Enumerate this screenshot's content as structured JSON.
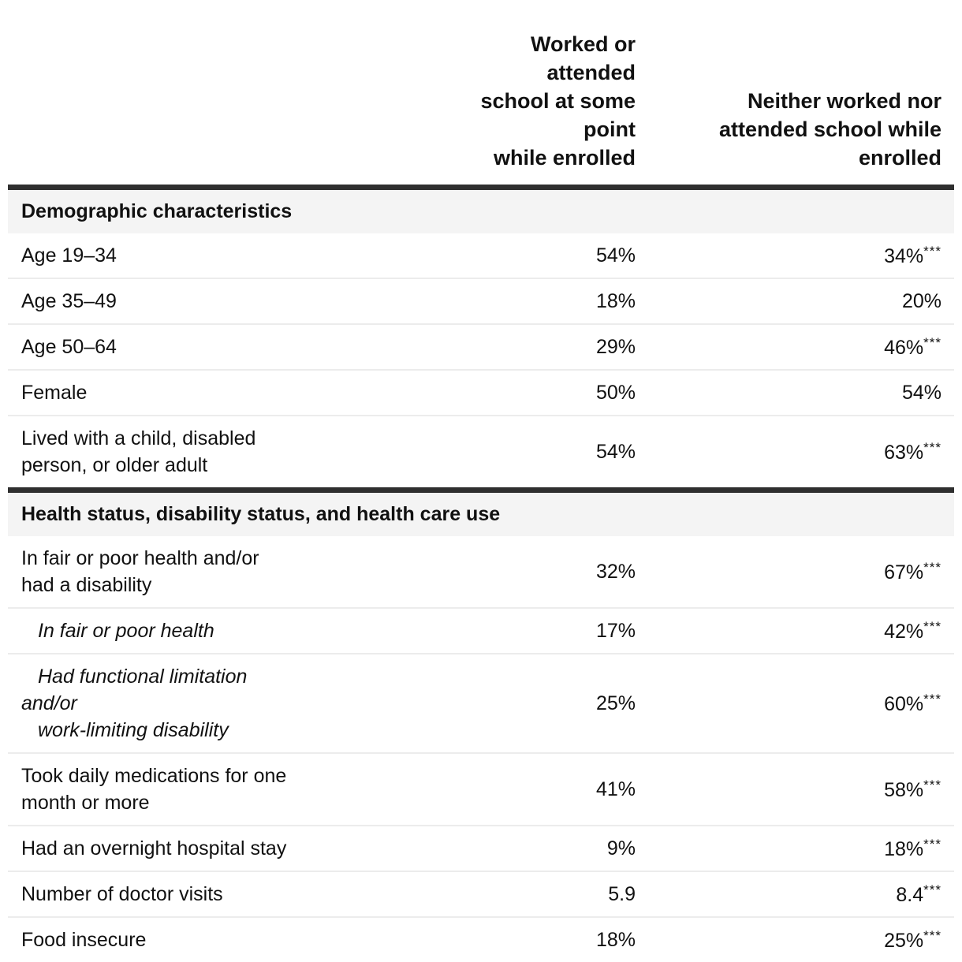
{
  "table": {
    "kind": "comparison-table",
    "columns": [
      {
        "id": "worked",
        "label": "Worked or attended school at some point while enrolled",
        "label_lines": [
          "Worked or attended",
          "school at some point",
          "while enrolled"
        ]
      },
      {
        "id": "neither",
        "label": "Neither worked nor attended school while enrolled",
        "label_lines": [
          "Neither worked nor",
          "attended school while",
          "enrolled"
        ]
      }
    ],
    "sections": [
      {
        "title": "Demographic characteristics",
        "rows": [
          {
            "label": "Age 19–34",
            "label_lines": [
              "Age 19–34"
            ],
            "italic": false,
            "indent_lines": [
              false
            ],
            "worked": "54%",
            "neither": "34%",
            "neither_sig": "***"
          },
          {
            "label": "Age 35–49",
            "label_lines": [
              "Age 35–49"
            ],
            "italic": false,
            "indent_lines": [
              false
            ],
            "worked": "18%",
            "neither": "20%",
            "neither_sig": ""
          },
          {
            "label": "Age 50–64",
            "label_lines": [
              "Age 50–64"
            ],
            "italic": false,
            "indent_lines": [
              false
            ],
            "worked": "29%",
            "neither": "46%",
            "neither_sig": "***"
          },
          {
            "label": "Female",
            "label_lines": [
              "Female"
            ],
            "italic": false,
            "indent_lines": [
              false
            ],
            "worked": "50%",
            "neither": "54%",
            "neither_sig": ""
          },
          {
            "label": "Lived with a child, disabled person, or older adult",
            "label_lines": [
              "Lived with a child, disabled",
              "person, or older adult"
            ],
            "italic": false,
            "indent_lines": [
              false,
              false
            ],
            "worked": "54%",
            "neither": "63%",
            "neither_sig": "***"
          }
        ]
      },
      {
        "title": "Health status, disability status, and health care use",
        "rows": [
          {
            "label": "In fair or poor health and/or had a disability",
            "label_lines": [
              "In fair or poor health and/or",
              "had a disability"
            ],
            "italic": false,
            "indent_lines": [
              false,
              false
            ],
            "worked": "32%",
            "neither": "67%",
            "neither_sig": "***"
          },
          {
            "label": "In fair or poor health",
            "label_lines": [
              "In fair or poor health"
            ],
            "italic": true,
            "indent_lines": [
              true
            ],
            "worked": "17%",
            "neither": "42%",
            "neither_sig": "***"
          },
          {
            "label": "Had functional limitation and/or work-limiting disability",
            "label_lines": [
              "Had functional limitation",
              "and/or",
              "work-limiting disability"
            ],
            "italic": true,
            "indent_lines": [
              true,
              false,
              true
            ],
            "worked": "25%",
            "neither": "60%",
            "neither_sig": "***"
          },
          {
            "label": "Took daily medications for one month or more",
            "label_lines": [
              "Took daily medications for one",
              "month or more"
            ],
            "italic": false,
            "indent_lines": [
              false,
              false
            ],
            "worked": "41%",
            "neither": "58%",
            "neither_sig": "***"
          },
          {
            "label": "Had an overnight hospital stay",
            "label_lines": [
              "Had an overnight hospital stay"
            ],
            "italic": false,
            "indent_lines": [
              false
            ],
            "worked": "9%",
            "neither": "18%",
            "neither_sig": "***"
          },
          {
            "label": "Number of doctor visits",
            "label_lines": [
              "Number of doctor visits"
            ],
            "italic": false,
            "indent_lines": [
              false
            ],
            "worked": "5.9",
            "neither": "8.4",
            "neither_sig": "***"
          },
          {
            "label": "Food insecure",
            "label_lines": [
              "Food insecure"
            ],
            "italic": false,
            "indent_lines": [
              false
            ],
            "worked": "18%",
            "neither": "25%",
            "neither_sig": "***"
          }
        ]
      }
    ],
    "significance_marker": "***",
    "colors": {
      "thick_rule": "#2f2f2f",
      "row_divider": "#ececec",
      "section_band_bg": "#f4f4f4",
      "text": "#111111",
      "page_bg": "#ffffff"
    }
  }
}
